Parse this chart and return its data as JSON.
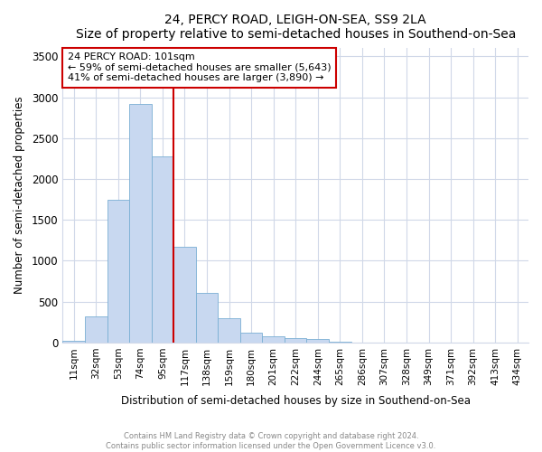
{
  "title": "24, PERCY ROAD, LEIGH-ON-SEA, SS9 2LA",
  "subtitle": "Size of property relative to semi-detached houses in Southend-on-Sea",
  "xlabel": "Distribution of semi-detached houses by size in Southend-on-Sea",
  "ylabel": "Number of semi-detached properties",
  "bar_labels": [
    "11sqm",
    "32sqm",
    "53sqm",
    "74sqm",
    "95sqm",
    "117sqm",
    "138sqm",
    "159sqm",
    "180sqm",
    "201sqm",
    "222sqm",
    "244sqm",
    "265sqm",
    "286sqm",
    "307sqm",
    "328sqm",
    "349sqm",
    "371sqm",
    "392sqm",
    "413sqm",
    "434sqm"
  ],
  "bar_values": [
    20,
    320,
    1750,
    2920,
    2280,
    1175,
    610,
    295,
    120,
    75,
    55,
    40,
    10,
    0,
    0,
    0,
    0,
    0,
    0,
    0,
    0
  ],
  "bar_color": "#c8d8f0",
  "bar_edgecolor": "#7aafd4",
  "vline_index": 4.5,
  "annotation_title": "24 PERCY ROAD: 101sqm",
  "annotation_line2": "← 59% of semi-detached houses are smaller (5,643)",
  "annotation_line3": "41% of semi-detached houses are larger (3,890) →",
  "annotation_box_color": "#ffffff",
  "annotation_border_color": "#cc0000",
  "vline_color": "#cc0000",
  "ylim": [
    0,
    3600
  ],
  "yticks": [
    0,
    500,
    1000,
    1500,
    2000,
    2500,
    3000,
    3500
  ],
  "footer_line1": "Contains HM Land Registry data © Crown copyright and database right 2024.",
  "footer_line2": "Contains public sector information licensed under the Open Government Licence v3.0.",
  "background_color": "#ffffff",
  "plot_background": "#ffffff",
  "grid_color": "#d0d8e8"
}
